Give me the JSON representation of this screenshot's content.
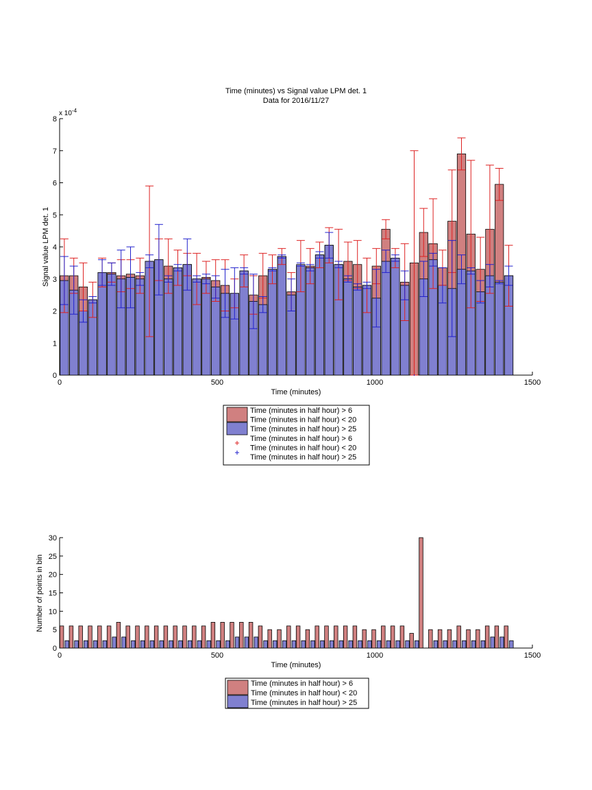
{
  "chart_data": [
    {
      "type": "bar",
      "title": "Time (minutes) vs Signal value LPM det. 1",
      "subtitle": "Data for 2016/11/27",
      "xlabel": "Time (minutes)",
      "ylabel": "Signal value LPM det. 1",
      "y_exponent_label": "x 10",
      "y_exponent_power": "-4",
      "xlim": [
        0,
        1500
      ],
      "ylim": [
        0,
        8
      ],
      "x_ticks": [
        "0",
        "500",
        "1000",
        "1500"
      ],
      "y_ticks": [
        "0",
        "1",
        "2",
        "3",
        "4",
        "5",
        "6",
        "7",
        "8"
      ],
      "grid": false,
      "legend_position": "below",
      "legend": [
        "Time (minutes in half hour) > 6",
        "Time (minutes in half hour) < 20",
        "Time (minutes in half hour) > 25",
        "Time (minutes in half hour) > 6",
        "Time (minutes in half hour) < 20",
        "Time (minutes in half hour) > 25"
      ],
      "x": [
        15,
        45,
        75,
        105,
        135,
        165,
        195,
        225,
        255,
        285,
        315,
        345,
        375,
        405,
        435,
        465,
        495,
        525,
        555,
        585,
        615,
        645,
        675,
        705,
        735,
        765,
        795,
        825,
        855,
        885,
        915,
        945,
        975,
        1005,
        1035,
        1065,
        1095,
        1125,
        1155,
        1185,
        1215,
        1245,
        1275,
        1305,
        1335,
        1365,
        1395,
        1425
      ],
      "series": [
        {
          "color": "#d08080",
          "error_color": "#dd2020",
          "values": [
            3.1,
            3.1,
            2.75,
            2.35,
            3.2,
            3.2,
            3.1,
            3.15,
            3.1,
            3.55,
            3.6,
            3.4,
            3.35,
            3.45,
            3.0,
            3.05,
            2.95,
            2.8,
            2.55,
            3.25,
            2.5,
            3.1,
            3.3,
            3.7,
            2.6,
            3.4,
            3.4,
            3.75,
            4.05,
            3.45,
            3.55,
            3.45,
            2.8,
            3.4,
            4.55,
            3.65,
            2.9,
            3.5,
            4.45,
            4.1,
            3.35,
            4.8,
            6.9,
            4.4,
            3.3,
            4.55,
            5.95,
            3.1
          ],
          "err": [
            1.15,
            0.55,
            0.75,
            0.55,
            0.45,
            0.3,
            0.5,
            0.45,
            0.55,
            2.35,
            0.65,
            0.85,
            0.55,
            0.35,
            0.8,
            0.5,
            0.65,
            0.8,
            0.45,
            0.5,
            0.6,
            0.7,
            0.45,
            0.25,
            0.6,
            0.8,
            0.55,
            0.4,
            0.55,
            1.1,
            0.6,
            0.75,
            0.85,
            0.55,
            0.3,
            0.3,
            1.2,
            3.5,
            0.75,
            1.4,
            0.55,
            1.6,
            0.5,
            2.3,
            1.0,
            2.0,
            0.5,
            0.95
          ]
        },
        {
          "color": "#8080d0",
          "error_color": "#2020cc",
          "values": [
            2.95,
            2.65,
            2.0,
            2.35,
            3.2,
            3.15,
            3.0,
            3.05,
            3.0,
            3.55,
            3.6,
            3.0,
            3.35,
            3.45,
            3.0,
            3.0,
            2.75,
            2.55,
            2.55,
            3.25,
            2.3,
            2.2,
            3.3,
            3.7,
            2.5,
            3.45,
            3.35,
            3.75,
            4.05,
            3.45,
            3.0,
            2.75,
            2.8,
            2.4,
            3.55,
            3.65,
            2.8,
            0.0,
            3.0,
            3.6,
            2.8,
            2.7,
            3.3,
            3.25,
            2.6,
            3.1,
            2.9,
            3.1
          ],
          "err": [
            0.75,
            0.75,
            0.35,
            0.1,
            0.4,
            0.35,
            0.9,
            0.95,
            0.2,
            0.2,
            1.1,
            0.1,
            0.1,
            0.8,
            0.1,
            0.15,
            0.35,
            0.75,
            0.8,
            0.1,
            0.85,
            0.25,
            0.05,
            0.05,
            0.5,
            0.05,
            0.1,
            0.1,
            0.4,
            0.1,
            0.1,
            0.1,
            0.1,
            0.9,
            0.35,
            0.1,
            0.45,
            0.0,
            0.55,
            0.2,
            0.55,
            1.5,
            0.45,
            0.1,
            0.35,
            0.35,
            0.05,
            0.3
          ]
        }
      ]
    },
    {
      "type": "bar",
      "xlabel": "Time (minutes)",
      "ylabel": "Number of points in bin",
      "xlim": [
        0,
        1500
      ],
      "ylim": [
        0,
        30
      ],
      "x_ticks": [
        "0",
        "500",
        "1000",
        "1500"
      ],
      "y_ticks": [
        "0",
        "5",
        "10",
        "15",
        "20",
        "25",
        "30"
      ],
      "grid": false,
      "legend_position": "below",
      "legend": [
        "Time (minutes in half hour) > 6",
        "Time (minutes in half hour) < 20",
        "Time (minutes in half hour) > 25"
      ],
      "x": [
        15,
        45,
        75,
        105,
        135,
        165,
        195,
        225,
        255,
        285,
        315,
        345,
        375,
        405,
        435,
        465,
        495,
        525,
        555,
        585,
        615,
        645,
        675,
        705,
        735,
        765,
        795,
        825,
        855,
        885,
        915,
        945,
        975,
        1005,
        1035,
        1065,
        1095,
        1125,
        1155,
        1185,
        1215,
        1245,
        1275,
        1305,
        1335,
        1365,
        1395,
        1425
      ],
      "series": [
        {
          "color": "#d08080",
          "values": [
            6,
            6,
            6,
            6,
            6,
            6,
            7,
            6,
            6,
            6,
            6,
            6,
            6,
            6,
            6,
            6,
            7,
            7,
            7,
            7,
            7,
            6,
            5,
            5,
            6,
            6,
            5,
            6,
            6,
            6,
            6,
            6,
            5,
            5,
            6,
            6,
            6,
            4,
            30,
            5,
            5,
            5,
            6,
            5,
            5,
            6,
            6,
            6
          ]
        },
        {
          "color": "#8080d0",
          "values": [
            2,
            2,
            2,
            2,
            2,
            3,
            3,
            2,
            2,
            2,
            2,
            2,
            2,
            2,
            2,
            2,
            2,
            2,
            3,
            3,
            3,
            2,
            2,
            2,
            2,
            2,
            2,
            2,
            2,
            2,
            2,
            2,
            2,
            2,
            2,
            2,
            2,
            2,
            0,
            2,
            2,
            2,
            2,
            2,
            2,
            3,
            3,
            2
          ]
        }
      ]
    }
  ]
}
